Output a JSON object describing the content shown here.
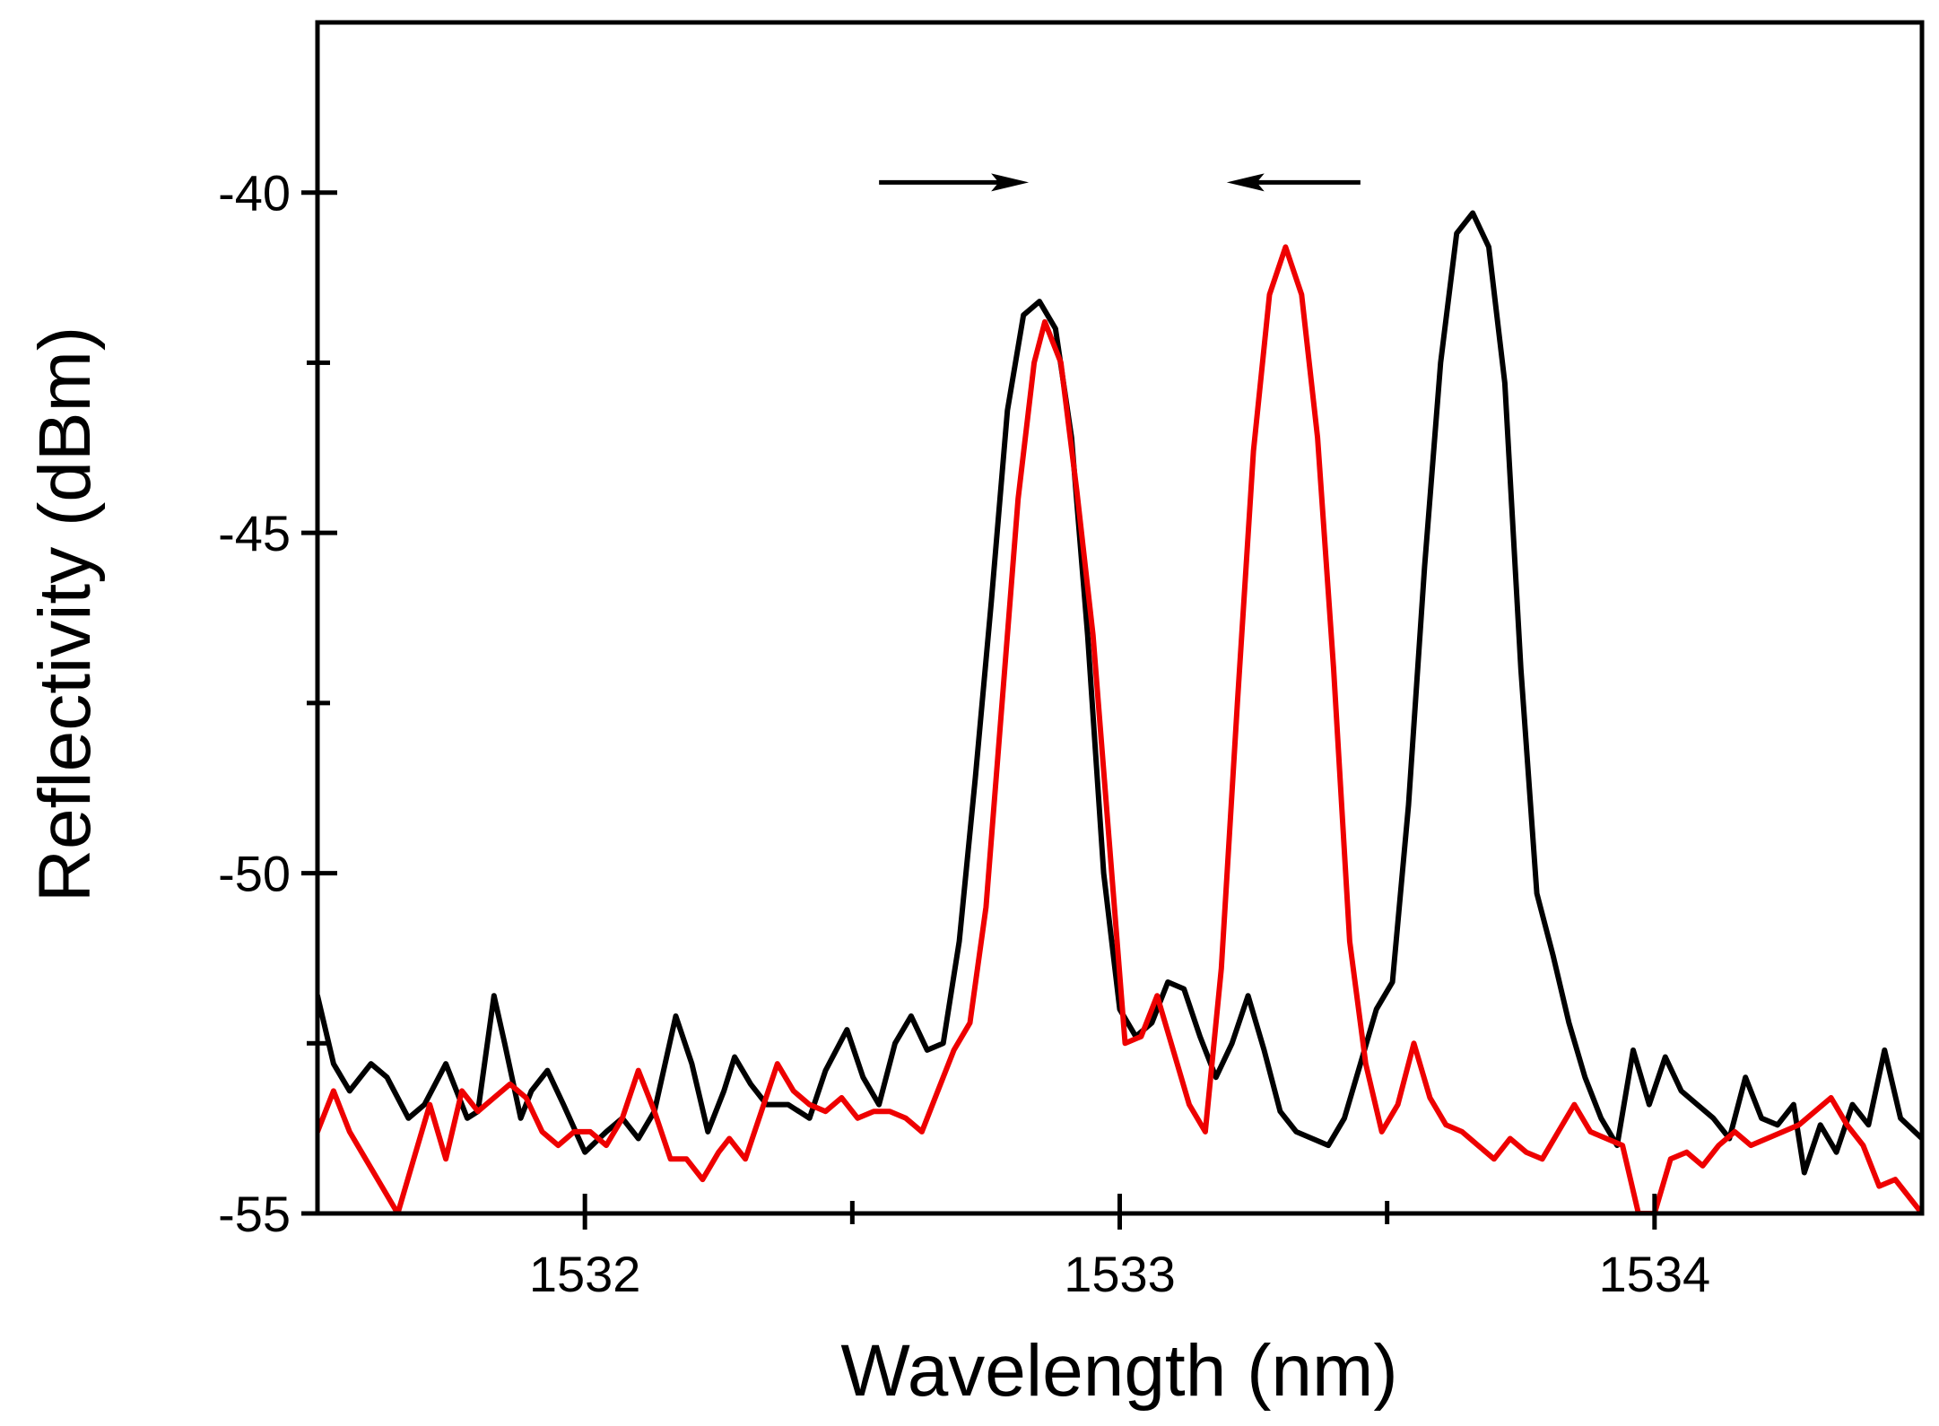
{
  "chart_data": {
    "type": "line",
    "title": "",
    "xlabel": "Wavelength (nm)",
    "ylabel": "Reflectivity (dBm)",
    "xlim": [
      1531.5,
      1534.5
    ],
    "ylim": [
      -55,
      -37.5
    ],
    "x_ticks": [
      1532,
      1533,
      1534
    ],
    "x_tick_labels": [
      "1532",
      "1533",
      "1534"
    ],
    "x_minor_ticks": [
      1532.5,
      1533.5
    ],
    "y_ticks": [
      -40,
      -45,
      -50,
      -55
    ],
    "y_tick_labels": [
      "-40",
      "-45",
      "-50",
      "-55"
    ],
    "y_minor_ticks": [
      -42.5,
      -47.5,
      -52.5
    ],
    "grid": false,
    "colors": {
      "black_series": "#000000",
      "red_series": "#ee0000",
      "axes": "#000000"
    },
    "annotations": [
      {
        "type": "arrow",
        "direction": "right",
        "from": [
          1532.55,
          -39.85
        ],
        "to": [
          1532.83,
          -39.85
        ]
      },
      {
        "type": "arrow",
        "direction": "left",
        "from": [
          1533.45,
          -39.85
        ],
        "to": [
          1533.2,
          -39.85
        ]
      }
    ],
    "series": [
      {
        "name": "black",
        "color": "#000000",
        "points": [
          [
            1531.5,
            -51.8
          ],
          [
            1531.53,
            -52.8
          ],
          [
            1531.56,
            -53.2
          ],
          [
            1531.6,
            -52.8
          ],
          [
            1531.63,
            -53.0
          ],
          [
            1531.67,
            -53.6
          ],
          [
            1531.7,
            -53.4
          ],
          [
            1531.74,
            -52.8
          ],
          [
            1531.78,
            -53.6
          ],
          [
            1531.8,
            -53.5
          ],
          [
            1531.83,
            -51.8
          ],
          [
            1531.85,
            -52.5
          ],
          [
            1531.88,
            -53.6
          ],
          [
            1531.9,
            -53.2
          ],
          [
            1531.93,
            -52.9
          ],
          [
            1531.96,
            -53.4
          ],
          [
            1532.0,
            -54.1
          ],
          [
            1532.04,
            -53.8
          ],
          [
            1532.07,
            -53.6
          ],
          [
            1532.1,
            -53.9
          ],
          [
            1532.13,
            -53.5
          ],
          [
            1532.17,
            -52.1
          ],
          [
            1532.2,
            -52.8
          ],
          [
            1532.23,
            -53.8
          ],
          [
            1532.26,
            -53.2
          ],
          [
            1532.28,
            -52.7
          ],
          [
            1532.31,
            -53.1
          ],
          [
            1532.34,
            -53.4
          ],
          [
            1532.38,
            -53.4
          ],
          [
            1532.42,
            -53.6
          ],
          [
            1532.45,
            -52.9
          ],
          [
            1532.49,
            -52.3
          ],
          [
            1532.52,
            -53.0
          ],
          [
            1532.55,
            -53.4
          ],
          [
            1532.58,
            -52.5
          ],
          [
            1532.61,
            -52.1
          ],
          [
            1532.64,
            -52.6
          ],
          [
            1532.67,
            -52.5
          ],
          [
            1532.7,
            -51.0
          ],
          [
            1532.73,
            -48.6
          ],
          [
            1532.76,
            -46.0
          ],
          [
            1532.79,
            -43.2
          ],
          [
            1532.82,
            -41.8
          ],
          [
            1532.85,
            -41.6
          ],
          [
            1532.88,
            -42.0
          ],
          [
            1532.91,
            -43.6
          ],
          [
            1532.94,
            -46.5
          ],
          [
            1532.97,
            -50.0
          ],
          [
            1533.0,
            -52.0
          ],
          [
            1533.03,
            -52.4
          ],
          [
            1533.06,
            -52.2
          ],
          [
            1533.09,
            -51.6
          ],
          [
            1533.12,
            -51.7
          ],
          [
            1533.15,
            -52.4
          ],
          [
            1533.18,
            -53.0
          ],
          [
            1533.21,
            -52.5
          ],
          [
            1533.24,
            -51.8
          ],
          [
            1533.27,
            -52.6
          ],
          [
            1533.3,
            -53.5
          ],
          [
            1533.33,
            -53.8
          ],
          [
            1533.36,
            -53.9
          ],
          [
            1533.39,
            -54.0
          ],
          [
            1533.42,
            -53.6
          ],
          [
            1533.45,
            -52.8
          ],
          [
            1533.48,
            -52.0
          ],
          [
            1533.51,
            -51.6
          ],
          [
            1533.54,
            -49.0
          ],
          [
            1533.57,
            -45.5
          ],
          [
            1533.6,
            -42.5
          ],
          [
            1533.63,
            -40.6
          ],
          [
            1533.66,
            -40.3
          ],
          [
            1533.69,
            -40.8
          ],
          [
            1533.72,
            -42.8
          ],
          [
            1533.75,
            -47.0
          ],
          [
            1533.78,
            -50.3
          ],
          [
            1533.81,
            -51.2
          ],
          [
            1533.84,
            -52.2
          ],
          [
            1533.87,
            -53.0
          ],
          [
            1533.9,
            -53.6
          ],
          [
            1533.93,
            -54.0
          ],
          [
            1533.96,
            -52.6
          ],
          [
            1533.99,
            -53.4
          ],
          [
            1534.02,
            -52.7
          ],
          [
            1534.05,
            -53.2
          ],
          [
            1534.08,
            -53.4
          ],
          [
            1534.11,
            -53.6
          ],
          [
            1534.14,
            -53.9
          ],
          [
            1534.17,
            -53.0
          ],
          [
            1534.2,
            -53.6
          ],
          [
            1534.23,
            -53.7
          ],
          [
            1534.26,
            -53.4
          ],
          [
            1534.28,
            -54.4
          ],
          [
            1534.31,
            -53.7
          ],
          [
            1534.34,
            -54.1
          ],
          [
            1534.37,
            -53.4
          ],
          [
            1534.4,
            -53.7
          ],
          [
            1534.43,
            -52.6
          ],
          [
            1534.46,
            -53.6
          ],
          [
            1534.5,
            -53.9
          ]
        ]
      },
      {
        "name": "red",
        "color": "#ee0000",
        "points": [
          [
            1531.5,
            -53.8
          ],
          [
            1531.53,
            -53.2
          ],
          [
            1531.56,
            -53.8
          ],
          [
            1531.59,
            -54.2
          ],
          [
            1531.62,
            -54.6
          ],
          [
            1531.65,
            -55.0
          ],
          [
            1531.68,
            -54.2
          ],
          [
            1531.71,
            -53.4
          ],
          [
            1531.74,
            -54.2
          ],
          [
            1531.77,
            -53.2
          ],
          [
            1531.8,
            -53.5
          ],
          [
            1531.83,
            -53.3
          ],
          [
            1531.86,
            -53.1
          ],
          [
            1531.89,
            -53.3
          ],
          [
            1531.92,
            -53.8
          ],
          [
            1531.95,
            -54.0
          ],
          [
            1531.98,
            -53.8
          ],
          [
            1532.01,
            -53.8
          ],
          [
            1532.04,
            -54.0
          ],
          [
            1532.07,
            -53.6
          ],
          [
            1532.1,
            -52.9
          ],
          [
            1532.13,
            -53.5
          ],
          [
            1532.16,
            -54.2
          ],
          [
            1532.19,
            -54.2
          ],
          [
            1532.22,
            -54.5
          ],
          [
            1532.25,
            -54.1
          ],
          [
            1532.27,
            -53.9
          ],
          [
            1532.3,
            -54.2
          ],
          [
            1532.33,
            -53.5
          ],
          [
            1532.36,
            -52.8
          ],
          [
            1532.39,
            -53.2
          ],
          [
            1532.42,
            -53.4
          ],
          [
            1532.45,
            -53.5
          ],
          [
            1532.48,
            -53.3
          ],
          [
            1532.51,
            -53.6
          ],
          [
            1532.54,
            -53.5
          ],
          [
            1532.57,
            -53.5
          ],
          [
            1532.6,
            -53.6
          ],
          [
            1532.63,
            -53.8
          ],
          [
            1532.66,
            -53.2
          ],
          [
            1532.69,
            -52.6
          ],
          [
            1532.72,
            -52.2
          ],
          [
            1532.75,
            -50.5
          ],
          [
            1532.78,
            -47.5
          ],
          [
            1532.81,
            -44.5
          ],
          [
            1532.84,
            -42.5
          ],
          [
            1532.86,
            -41.9
          ],
          [
            1532.89,
            -42.5
          ],
          [
            1532.92,
            -44.4
          ],
          [
            1532.95,
            -46.5
          ],
          [
            1532.98,
            -49.5
          ],
          [
            1533.01,
            -52.5
          ],
          [
            1533.04,
            -52.4
          ],
          [
            1533.07,
            -51.8
          ],
          [
            1533.1,
            -52.6
          ],
          [
            1533.13,
            -53.4
          ],
          [
            1533.16,
            -53.8
          ],
          [
            1533.19,
            -51.4
          ],
          [
            1533.22,
            -47.5
          ],
          [
            1533.25,
            -43.8
          ],
          [
            1533.28,
            -41.5
          ],
          [
            1533.31,
            -40.8
          ],
          [
            1533.34,
            -41.5
          ],
          [
            1533.37,
            -43.6
          ],
          [
            1533.4,
            -47.0
          ],
          [
            1533.43,
            -51.0
          ],
          [
            1533.46,
            -52.8
          ],
          [
            1533.49,
            -53.8
          ],
          [
            1533.52,
            -53.4
          ],
          [
            1533.55,
            -52.5
          ],
          [
            1533.58,
            -53.3
          ],
          [
            1533.61,
            -53.7
          ],
          [
            1533.64,
            -53.8
          ],
          [
            1533.67,
            -54.0
          ],
          [
            1533.7,
            -54.2
          ],
          [
            1533.73,
            -53.9
          ],
          [
            1533.76,
            -54.1
          ],
          [
            1533.79,
            -54.2
          ],
          [
            1533.82,
            -53.8
          ],
          [
            1533.85,
            -53.4
          ],
          [
            1533.88,
            -53.8
          ],
          [
            1533.91,
            -53.9
          ],
          [
            1533.94,
            -54.0
          ],
          [
            1533.97,
            -55.0
          ],
          [
            1534.0,
            -55.0
          ],
          [
            1534.03,
            -54.2
          ],
          [
            1534.06,
            -54.1
          ],
          [
            1534.09,
            -54.3
          ],
          [
            1534.12,
            -54.0
          ],
          [
            1534.15,
            -53.8
          ],
          [
            1534.18,
            -54.0
          ],
          [
            1534.21,
            -53.9
          ],
          [
            1534.24,
            -53.8
          ],
          [
            1534.27,
            -53.7
          ],
          [
            1534.3,
            -53.5
          ],
          [
            1534.33,
            -53.3
          ],
          [
            1534.36,
            -53.7
          ],
          [
            1534.39,
            -54.0
          ],
          [
            1534.42,
            -54.6
          ],
          [
            1534.45,
            -54.5
          ],
          [
            1534.5,
            -55.0
          ]
        ]
      }
    ]
  }
}
